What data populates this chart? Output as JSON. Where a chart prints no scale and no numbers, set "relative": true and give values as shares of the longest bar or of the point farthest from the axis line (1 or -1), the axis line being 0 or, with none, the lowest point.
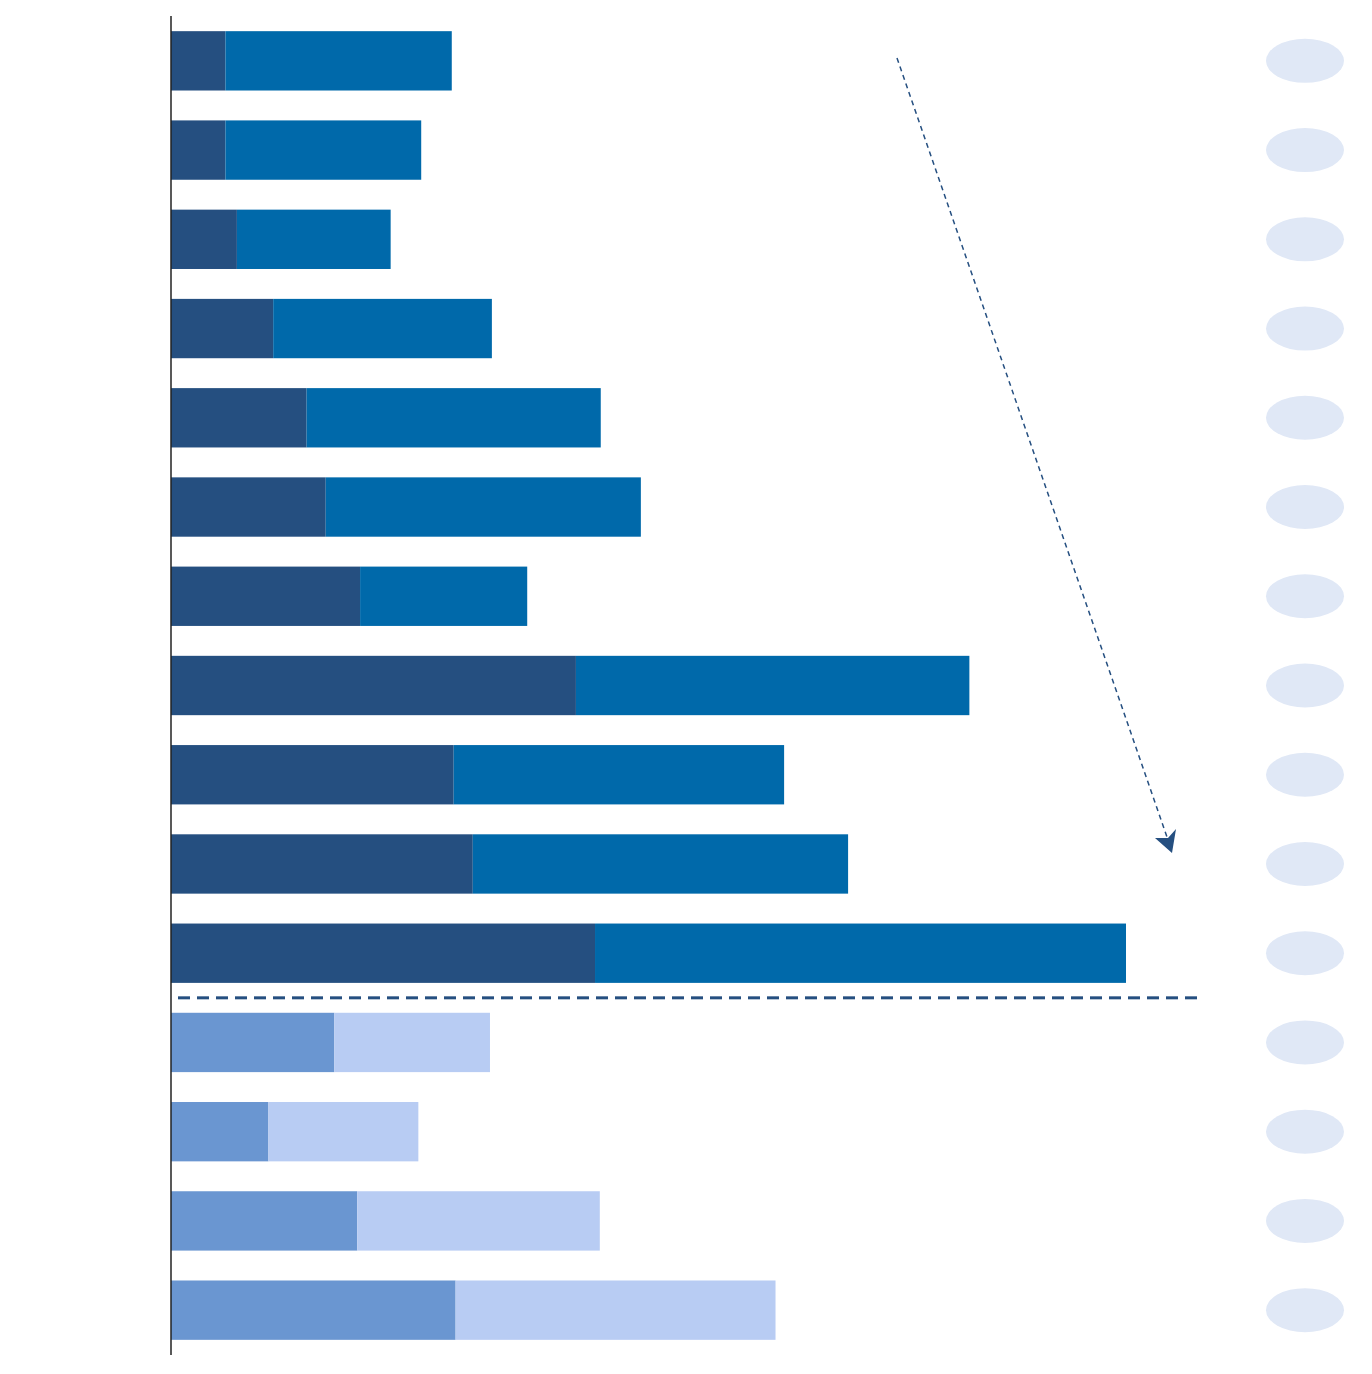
{
  "chart_data": {
    "type": "bar",
    "orientation": "horizontal",
    "stacked": true,
    "relative": true,
    "categories": [
      null,
      null,
      null,
      null,
      null,
      null,
      null,
      null,
      null,
      null,
      null,
      null,
      null,
      null,
      null
    ],
    "series": [
      {
        "colors": [
          "#254f80",
          "#254f80",
          "#254f80",
          "#254f80",
          "#254f80",
          "#254f80",
          "#254f80",
          "#254f80",
          "#254f80",
          "#254f80",
          "#254f80",
          "#6a96d1",
          "#6a96d1",
          "#6a96d1",
          "#6a96d1"
        ],
        "values": [
          0.057,
          0.057,
          0.069,
          0.107,
          0.142,
          0.162,
          0.198,
          0.424,
          0.296,
          0.316,
          0.444,
          0.171,
          0.102,
          0.195,
          0.298
        ]
      },
      {
        "colors": [
          "#0069aa",
          "#0069aa",
          "#0069aa",
          "#0069aa",
          "#0069aa",
          "#0069aa",
          "#0069aa",
          "#0069aa",
          "#0069aa",
          "#0069aa",
          "#0069aa",
          "#b8ccf3",
          "#b8ccf3",
          "#b8ccf3",
          "#b8ccf3"
        ],
        "values": [
          0.237,
          0.205,
          0.161,
          0.229,
          0.308,
          0.33,
          0.175,
          0.412,
          0.346,
          0.393,
          0.556,
          0.163,
          0.157,
          0.254,
          0.335
        ]
      }
    ]
  }
}
